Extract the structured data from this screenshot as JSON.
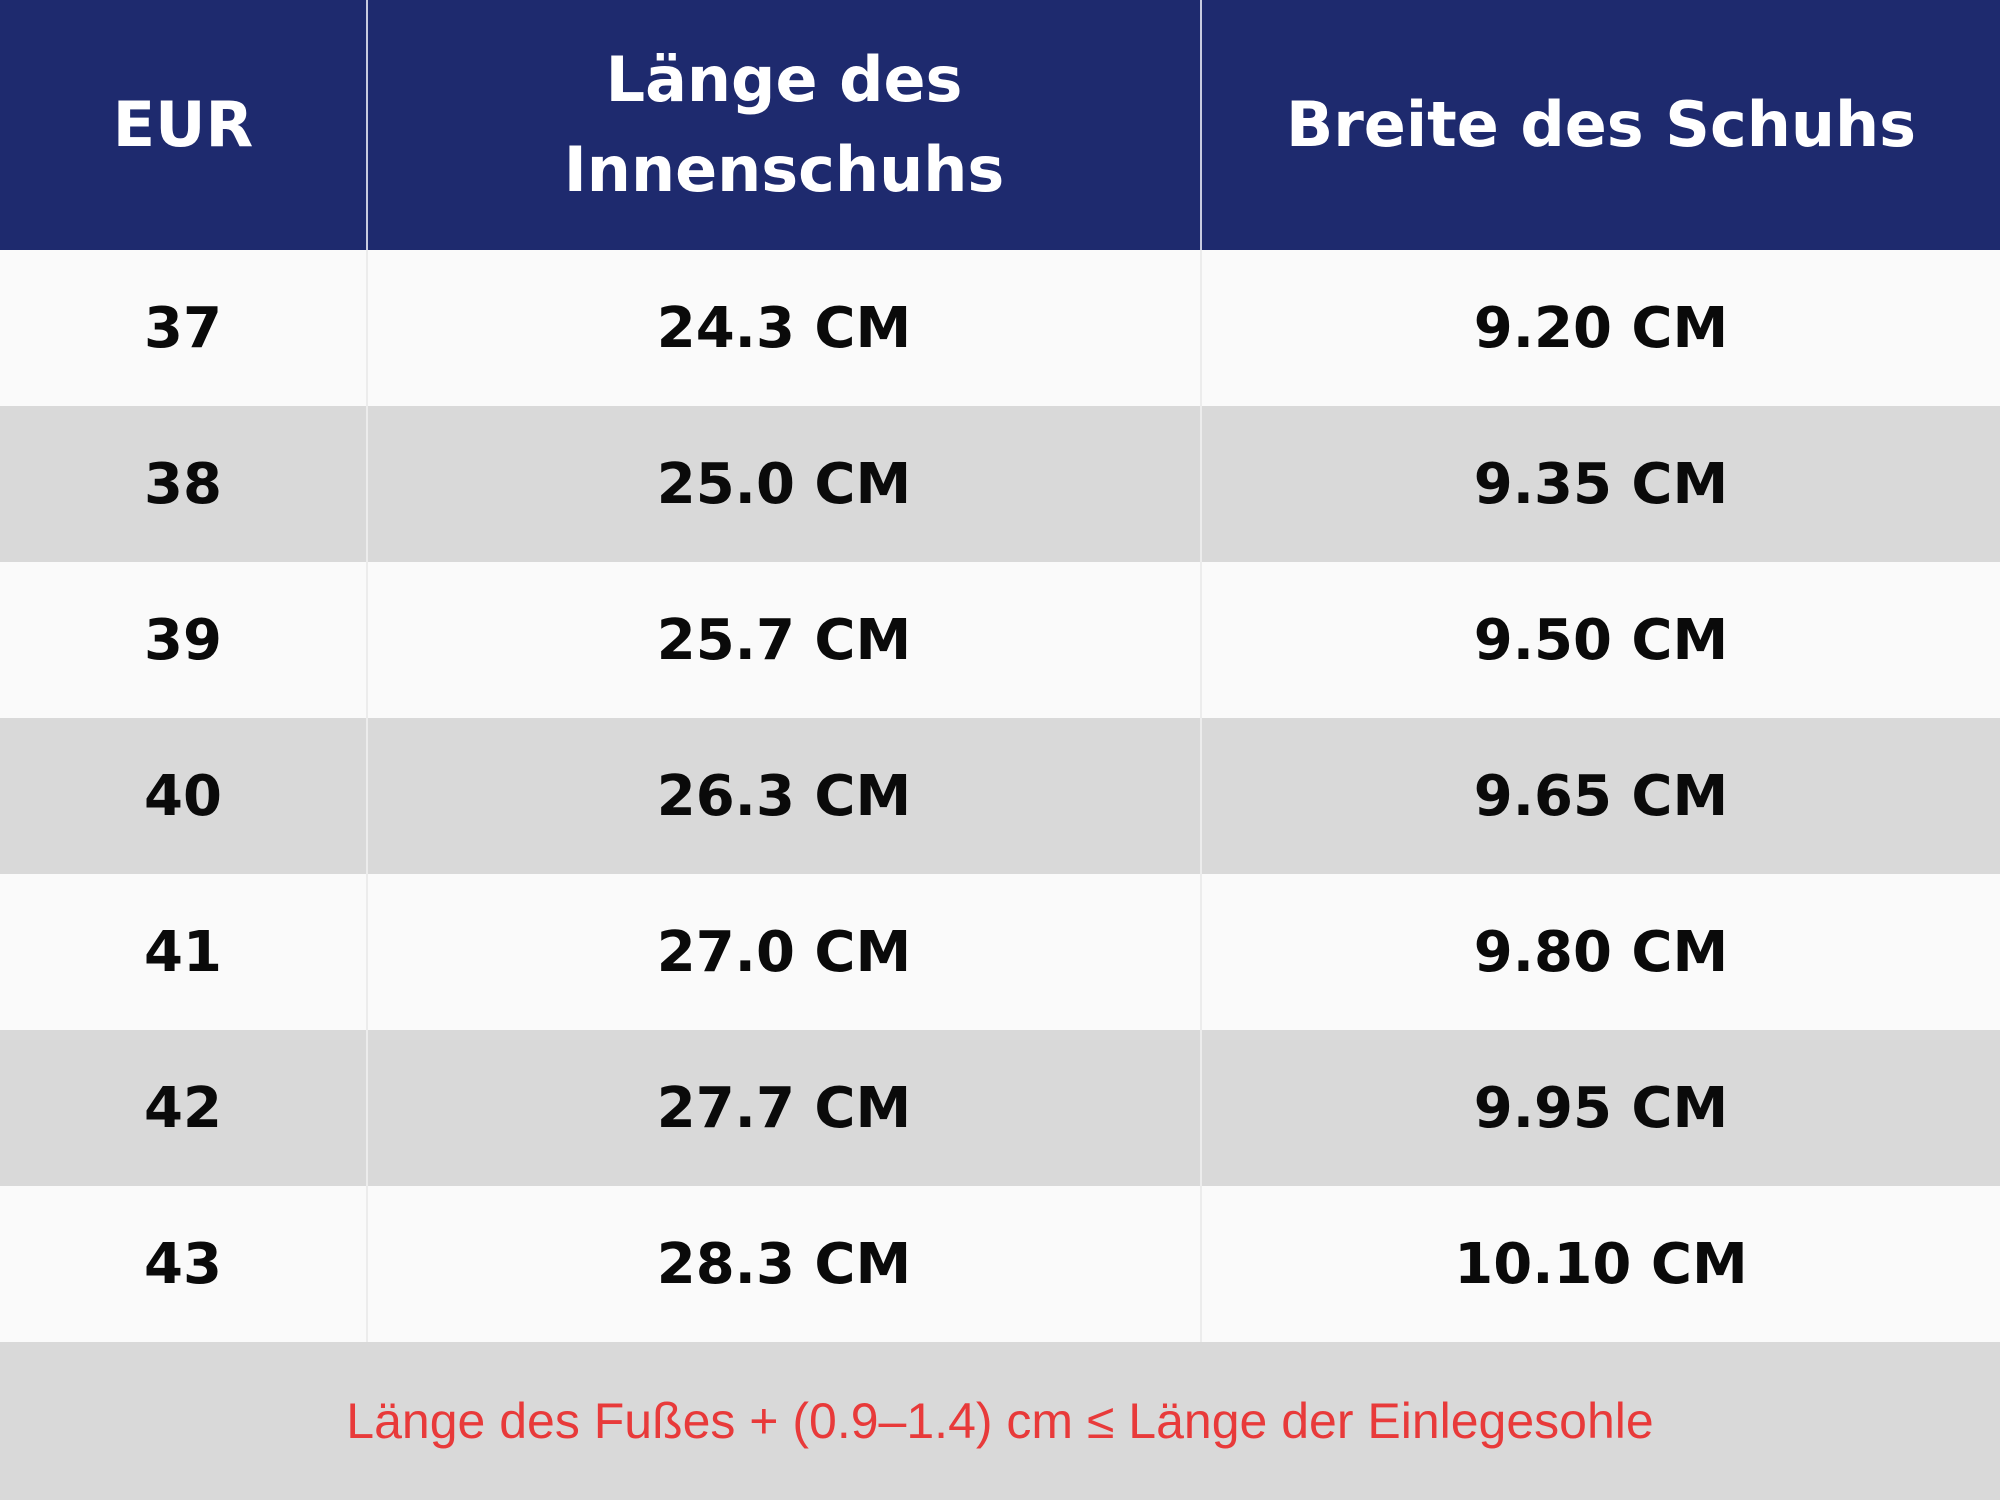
{
  "header": {
    "columns": [
      "EUR",
      "Länge des Innenschuhs",
      "Breite des Schuhs"
    ]
  },
  "table": {
    "rows": [
      [
        "37",
        "24.3 CM",
        "9.20 CM"
      ],
      [
        "38",
        "25.0 CM",
        "9.35 CM"
      ],
      [
        "39",
        "25.7 CM",
        "9.50 CM"
      ],
      [
        "40",
        "26.3 CM",
        "9.65 CM"
      ],
      [
        "41",
        "27.0 CM",
        "9.80 CM"
      ],
      [
        "42",
        "27.7 CM",
        "9.95 CM"
      ],
      [
        "43",
        "28.3 CM",
        "10.10 CM"
      ]
    ]
  },
  "footer": {
    "note": "Länge des Fußes + (0.9–1.4) cm ≤ Länge der Einlegesohle"
  }
}
